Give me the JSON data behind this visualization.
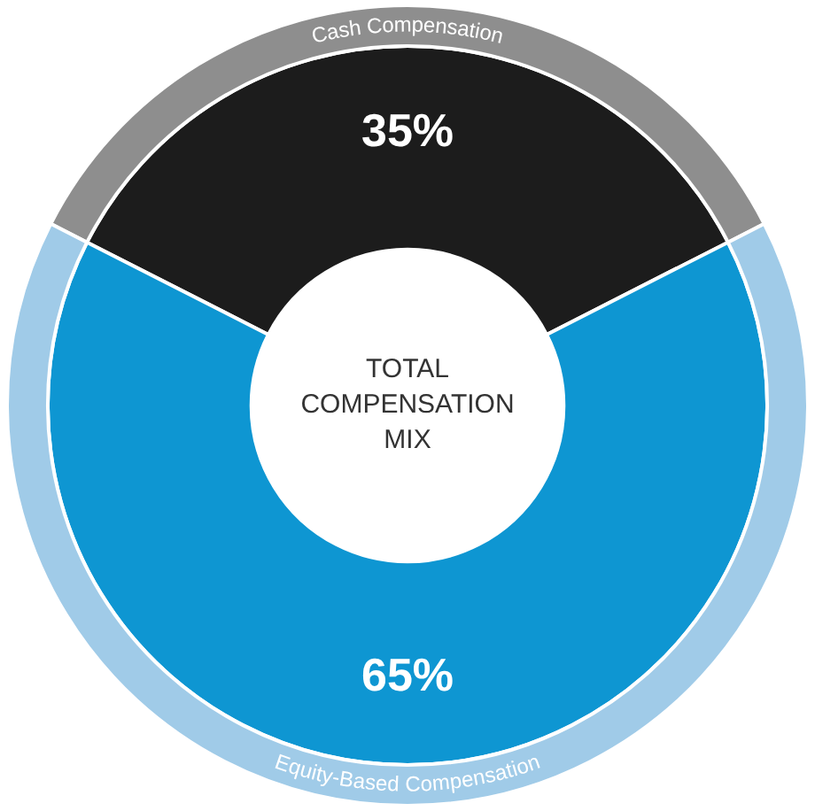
{
  "chart_data": {
    "type": "donut",
    "title": "TOTAL COMPENSATION MIX",
    "categories": [
      "Cash Compensation",
      "Equity-Based Compensation"
    ],
    "series": [
      {
        "values": [
          35,
          65
        ],
        "colors": [
          "#1c1c1c",
          "#0e96d2"
        ],
        "value_labels": [
          "35%",
          "65%"
        ]
      },
      {
        "values": [
          35,
          65
        ],
        "colors": [
          "#8e8e8e",
          "#a0cbe8"
        ]
      }
    ],
    "legend": false
  }
}
